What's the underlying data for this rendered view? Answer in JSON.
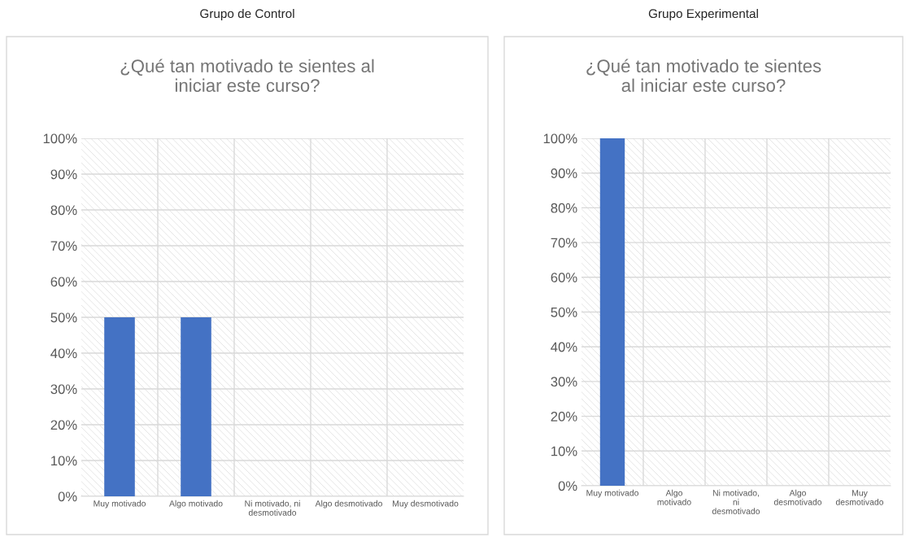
{
  "chart_data": [
    {
      "type": "bar",
      "title": "Grupo de Control",
      "subtitle": "¿Qué tan motivado te sientes al iniciar este curso?",
      "categories": [
        "Muy motivado",
        "Algo motivado",
        "Ni motivado, ni desmotivado",
        "Algo desmotivado",
        "Muy desmotivado"
      ],
      "values": [
        50,
        50,
        0,
        0,
        0
      ],
      "color": "#4472c4",
      "ylim": [
        0,
        100
      ],
      "yticks": [
        {
          "value": 0,
          "label": "0%"
        },
        {
          "value": 10,
          "label": "10%"
        },
        {
          "value": 20,
          "label": "20%"
        },
        {
          "value": 30,
          "label": "30%"
        },
        {
          "value": 40,
          "label": "40%"
        },
        {
          "value": 50,
          "label": "50%"
        },
        {
          "value": 60,
          "label": "60%"
        },
        {
          "value": 70,
          "label": "70%"
        },
        {
          "value": 80,
          "label": "80%"
        },
        {
          "value": 90,
          "label": "90%"
        },
        {
          "value": 100,
          "label": "100%"
        }
      ],
      "grid": true
    },
    {
      "type": "bar",
      "title": "Grupo Experimental",
      "subtitle": "¿Qué tan motivado te sientes al iniciar este curso?",
      "categories": [
        "Muy motivado",
        "Algo motivado",
        "Ni motivado, ni desmotivado",
        "Algo desmotivado",
        "Muy desmotivado"
      ],
      "values": [
        100,
        0,
        0,
        0,
        0
      ],
      "color": "#4472c4",
      "ylim": [
        0,
        100
      ],
      "yticks": [
        {
          "value": 0,
          "label": "0%"
        },
        {
          "value": 10,
          "label": "10%"
        },
        {
          "value": 20,
          "label": "20%"
        },
        {
          "value": 30,
          "label": "30%"
        },
        {
          "value": 40,
          "label": "40%"
        },
        {
          "value": 50,
          "label": "50%"
        },
        {
          "value": 60,
          "label": "60%"
        },
        {
          "value": 70,
          "label": "70%"
        },
        {
          "value": 80,
          "label": "80%"
        },
        {
          "value": 90,
          "label": "90%"
        },
        {
          "value": 100,
          "label": "100%"
        }
      ],
      "grid": true
    }
  ]
}
